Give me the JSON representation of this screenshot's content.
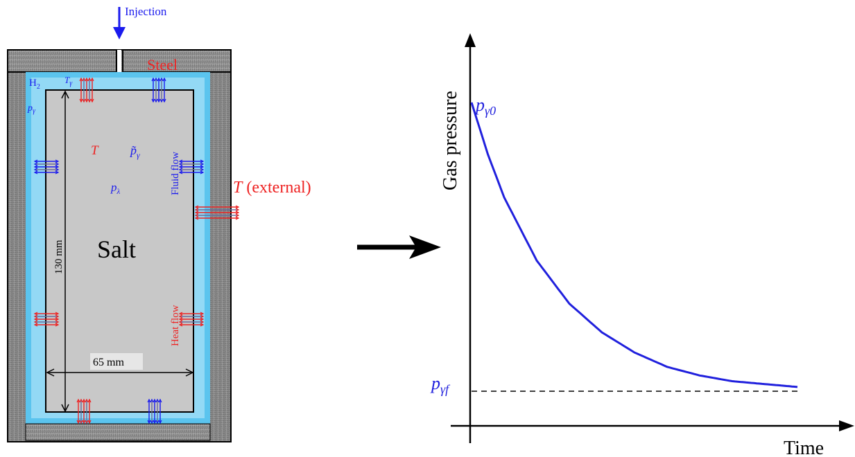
{
  "schematic": {
    "injection_label": "Injection",
    "steel_label": "Steel",
    "h2_label": "H",
    "h2_subscript": "2",
    "t_gamma_label": "T",
    "t_gamma_subscript": "γ",
    "p_gamma_label": "p",
    "p_gamma_subscript": "γ",
    "T_label": "T",
    "p_tilde_label": "p̃",
    "p_tilde_subscript": "γ",
    "p_lambda_label": "p",
    "p_lambda_subscript": "λ",
    "fluid_flow_label": "Fluid flow",
    "heat_flow_label": "Heat flow",
    "external_T_label": "T",
    "external_suffix": " (external)",
    "salt_label": "Salt",
    "height_label": "130 mm",
    "width_label": "65 mm",
    "colors": {
      "steel": "#8a8a8a",
      "gas": "#5bc4ee",
      "salt": "#c8c8c8",
      "blue": "#1a1aee",
      "red": "#ee2222"
    }
  },
  "plot": {
    "ylabel": "Gas pressure",
    "xlabel": "Time",
    "p0_label": "p",
    "p0_subscript": "γ0",
    "pf_label": "p",
    "pf_subscript": "γf",
    "curve_color": "#2020dd"
  },
  "chart_data": {
    "type": "line",
    "title": "",
    "xlabel": "Time",
    "ylabel": "Gas pressure",
    "series": [
      {
        "x": [
          0,
          0.05,
          0.1,
          0.2,
          0.3,
          0.4,
          0.5,
          0.6,
          0.7,
          0.8,
          0.9,
          1.0
        ],
        "y": [
          1.0,
          0.82,
          0.67,
          0.45,
          0.3,
          0.2,
          0.13,
          0.08,
          0.05,
          0.03,
          0.02,
          0.01
        ]
      }
    ],
    "annotations": [
      "p_γ0 at start",
      "p_γf asymptote (dashed)"
    ],
    "grid": false
  }
}
